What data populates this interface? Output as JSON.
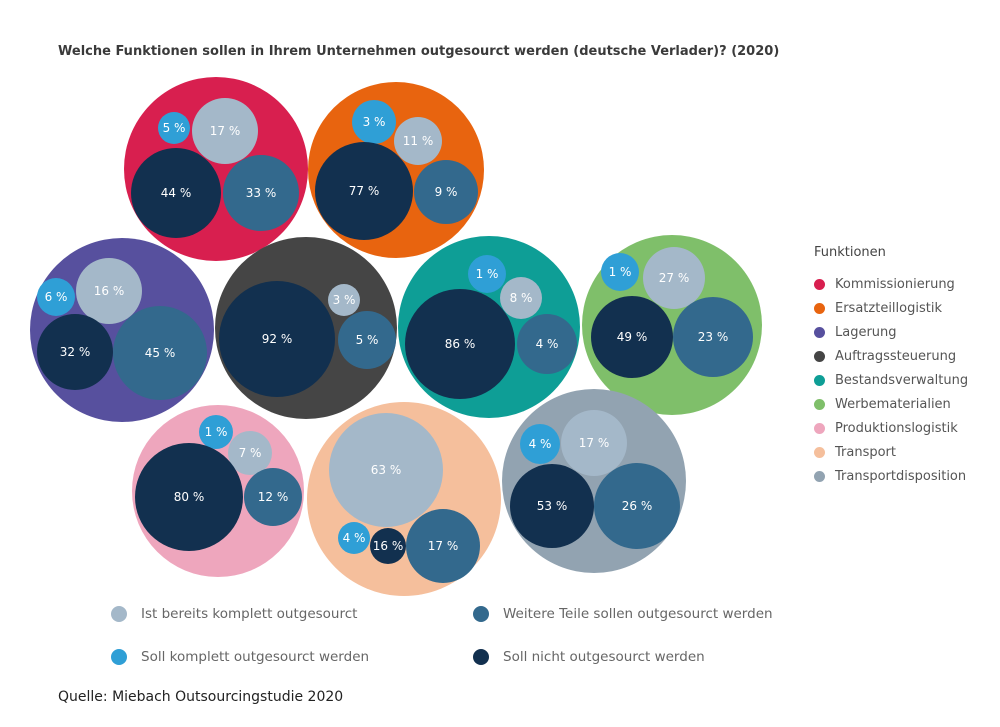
{
  "title": "Welche Funktionen sollen in Ihrem Unternehmen outgesourct werden (deutsche Verlader)? (2020)",
  "source": "Quelle: Miebach Outsourcingstudie 2020",
  "legend_functions": {
    "title": "Funktionen",
    "items": [
      {
        "label": "Kommissionierung",
        "color": "#d81f4f"
      },
      {
        "label": "Ersatzteillogistik",
        "color": "#e8640f"
      },
      {
        "label": "Lagerung",
        "color": "#57509e"
      },
      {
        "label": "Auftragssteuerung",
        "color": "#454545"
      },
      {
        "label": "Bestandsverwaltung",
        "color": "#0e9e96"
      },
      {
        "label": "Werbematerialien",
        "color": "#7fbf6a"
      },
      {
        "label": "Produktionslogistik",
        "color": "#eea6bd"
      },
      {
        "label": "Transport",
        "color": "#f5bf9c"
      },
      {
        "label": "Transportdisposition",
        "color": "#92a3b1"
      }
    ]
  },
  "legend_status": [
    {
      "label": "Ist bereits komplett outgesourct",
      "color": "#a4b8c9"
    },
    {
      "label": "Weitere Teile sollen outgesourct werden",
      "color": "#33698d"
    },
    {
      "label": "Soll komplett outgesourct werden",
      "color": "#2f9fd6"
    },
    {
      "label": "Soll nicht outgesourct werden",
      "color": "#12304f"
    }
  ],
  "chart_data": {
    "type": "packed-bubble",
    "unit": "%",
    "series_names": [
      "Ist bereits komplett outgesourct",
      "Weitere Teile sollen outgesourct werden",
      "Soll komplett outgesourct werden",
      "Soll nicht outgesourct werden"
    ],
    "groups": [
      {
        "name": "Kommissionierung",
        "color": "#d81f4f",
        "values": {
          "komplett_outgesourct": 17,
          "weitere_teile": 33,
          "soll_komplett": 5,
          "nicht": 44
        },
        "labels": {
          "komplett_outgesourct": "17 %",
          "weitere_teile": "33 %",
          "soll_komplett": "5 %",
          "nicht": "44 %"
        }
      },
      {
        "name": "Ersatzteillogistik",
        "color": "#e8640f",
        "values": {
          "komplett_outgesourct": 11,
          "weitere_teile": 9,
          "soll_komplett": 3,
          "nicht": 77
        },
        "labels": {
          "komplett_outgesourct": "11 %",
          "weitere_teile": "9 %",
          "soll_komplett": "3 %",
          "nicht": "77 %"
        }
      },
      {
        "name": "Lagerung",
        "color": "#57509e",
        "values": {
          "komplett_outgesourct": 16,
          "weitere_teile": 45,
          "soll_komplett": 6,
          "nicht": 32
        },
        "labels": {
          "komplett_outgesourct": "16 %",
          "weitere_teile": "45 %",
          "soll_komplett": "6 %",
          "nicht": "32 %"
        }
      },
      {
        "name": "Auftragssteuerung",
        "color": "#454545",
        "values": {
          "komplett_outgesourct": 3,
          "weitere_teile": 5,
          "soll_komplett": null,
          "nicht": 92
        },
        "labels": {
          "komplett_outgesourct": "3 %",
          "weitere_teile": "5 %",
          "soll_komplett": null,
          "nicht": "92 %"
        }
      },
      {
        "name": "Bestandsverwaltung",
        "color": "#0e9e96",
        "values": {
          "komplett_outgesourct": 8,
          "weitere_teile": 4,
          "soll_komplett": 1,
          "nicht": 86
        },
        "labels": {
          "komplett_outgesourct": "8 %",
          "weitere_teile": "4 %",
          "soll_komplett": "1 %",
          "nicht": "86 %"
        }
      },
      {
        "name": "Werbematerialien",
        "color": "#7fbf6a",
        "values": {
          "komplett_outgesourct": 27,
          "weitere_teile": 23,
          "soll_komplett": 1,
          "nicht": 49
        },
        "labels": {
          "komplett_outgesourct": "27 %",
          "weitere_teile": "23 %",
          "soll_komplett": "1 %",
          "nicht": "49 %"
        }
      },
      {
        "name": "Produktionslogistik",
        "color": "#eea6bd",
        "values": {
          "komplett_outgesourct": 7,
          "weitere_teile": 12,
          "soll_komplett": 1,
          "nicht": 80
        },
        "labels": {
          "komplett_outgesourct": "7 %",
          "weitere_teile": "12 %",
          "soll_komplett": "1 %",
          "nicht": "80 %"
        }
      },
      {
        "name": "Transport",
        "color": "#f5bf9c",
        "values": {
          "komplett_outgesourct": 63,
          "weitere_teile": 17,
          "soll_komplett": 4,
          "nicht": 16
        },
        "labels": {
          "komplett_outgesourct": "63 %",
          "weitere_teile": "17 %",
          "soll_komplett": "4 %",
          "nicht": "16 %"
        }
      },
      {
        "name": "Transportdisposition",
        "color": "#92a3b1",
        "values": {
          "komplett_outgesourct": 17,
          "weitere_teile": 26,
          "soll_komplett": 4,
          "nicht": 53
        },
        "labels": {
          "komplett_outgesourct": "17 %",
          "weitere_teile": "26 %",
          "soll_komplett": "4 %",
          "nicht": "53 %"
        }
      }
    ],
    "inner_colors": {
      "komplett_outgesourct": "#a4b8c9",
      "weitere_teile": "#33698d",
      "soll_komplett": "#2f9fd6",
      "nicht": "#12304f"
    }
  }
}
